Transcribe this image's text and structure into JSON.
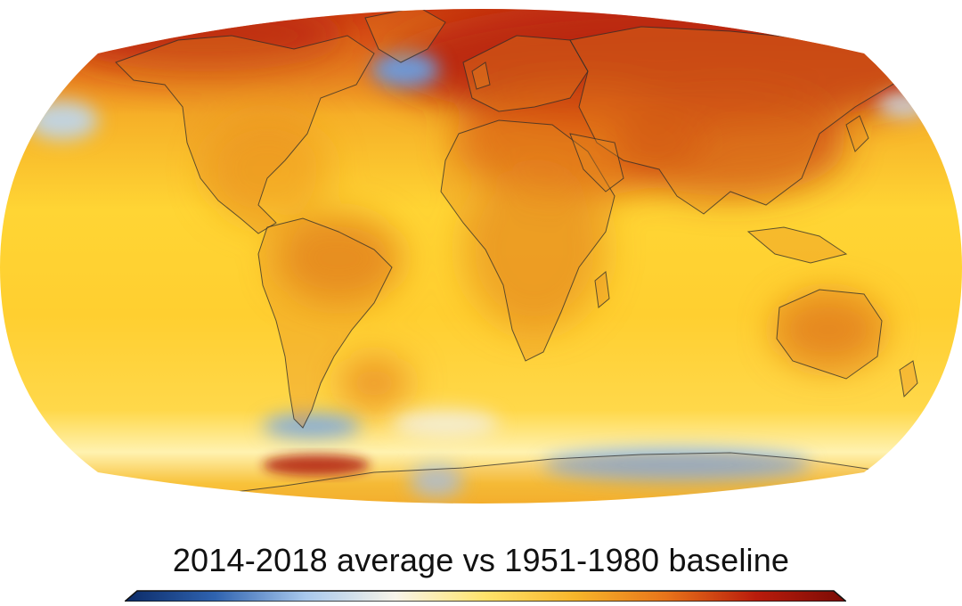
{
  "caption": {
    "text": "2014-2018 average vs 1951-1980 baseline"
  },
  "map": {
    "projection": "robinson",
    "theme": "surface temperature anomaly"
  },
  "colorbar": {
    "stops": [
      "#0b2a66",
      "#2f63b0",
      "#a8c8ec",
      "#f7f4ea",
      "#ffe36b",
      "#f7b52a",
      "#e8741a",
      "#b91c0c",
      "#7a0b05"
    ],
    "outline": "#111111"
  },
  "colors": {
    "background": "#ffffff",
    "base_anomaly": "#ffd63a",
    "warm": "#e8861f",
    "hot": "#c8290c",
    "cool": "#6e9fdb",
    "coast": "#2b2b2b"
  }
}
